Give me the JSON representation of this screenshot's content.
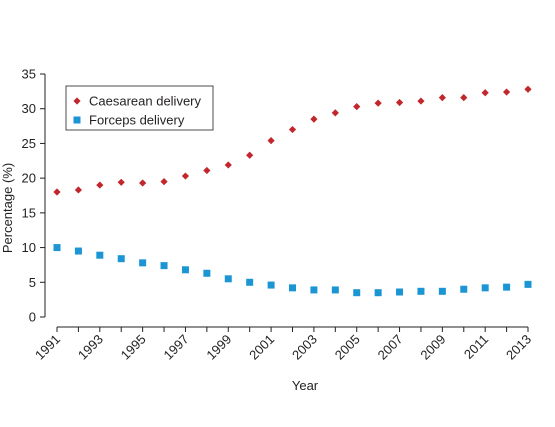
{
  "chart_data": {
    "type": "scatter",
    "title": "",
    "xlabel": "Year",
    "ylabel": "Percentage (%)",
    "xlim": [
      1991,
      2013
    ],
    "ylim": [
      0,
      35
    ],
    "x_ticks": [
      1991,
      1993,
      1995,
      1997,
      1999,
      2001,
      2003,
      2005,
      2007,
      2009,
      2011,
      2013
    ],
    "y_ticks": [
      0,
      5,
      10,
      15,
      20,
      25,
      30,
      35
    ],
    "grid": false,
    "legend_position": "top-left",
    "x": [
      1991,
      1992,
      1993,
      1994,
      1995,
      1996,
      1997,
      1998,
      1999,
      2000,
      2001,
      2002,
      2003,
      2004,
      2005,
      2006,
      2007,
      2008,
      2009,
      2010,
      2011,
      2012,
      2013
    ],
    "series": [
      {
        "name": "Caesarean delivery",
        "marker": "diamond",
        "color": "#c1272d",
        "values": [
          18.0,
          18.3,
          19.0,
          19.4,
          19.3,
          19.5,
          20.3,
          21.1,
          21.9,
          23.3,
          25.4,
          27.0,
          28.5,
          29.4,
          30.3,
          30.8,
          30.9,
          31.1,
          31.6,
          31.6,
          32.3,
          32.4,
          32.8
        ]
      },
      {
        "name": "Forceps delivery",
        "marker": "square",
        "color": "#1b95d3",
        "values": [
          10.0,
          9.5,
          8.9,
          8.4,
          7.8,
          7.4,
          6.8,
          6.3,
          5.5,
          5.0,
          4.6,
          4.2,
          3.9,
          3.9,
          3.5,
          3.5,
          3.6,
          3.7,
          3.7,
          4.0,
          4.2,
          4.3,
          4.7
        ]
      }
    ]
  }
}
